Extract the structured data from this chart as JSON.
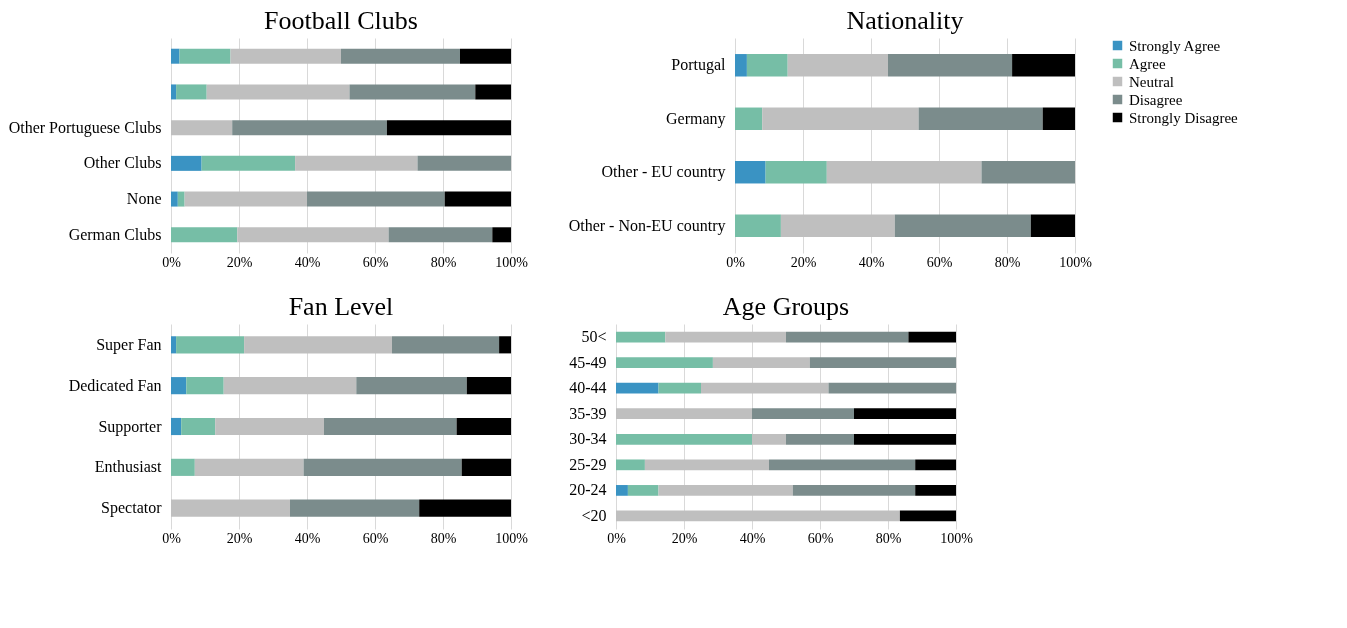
{
  "chart_data": [
    {
      "type": "bar",
      "orientation": "horizontal",
      "stacked": true,
      "title": "Football Clubs",
      "legend": "right",
      "categories": [
        null,
        null,
        "Other Portuguese Clubs",
        "Other Clubs",
        "None",
        "German Clubs"
      ],
      "xlim": [
        0,
        100
      ],
      "xticks": [
        {
          "value": 0,
          "label": "0%"
        },
        {
          "value": 20,
          "label": "20%"
        },
        {
          "value": 40,
          "label": "40%"
        },
        {
          "value": 60,
          "label": "60%"
        },
        {
          "value": 80,
          "label": "80%"
        },
        {
          "value": 100,
          "label": "100%"
        }
      ],
      "grid": "x",
      "series": [
        {
          "name": "Strongly Agree",
          "color": "#3a93c3",
          "values": [
            2.5,
            1.5,
            0,
            9,
            2,
            0
          ]
        },
        {
          "name": "Agree",
          "color": "#76bea6",
          "values": [
            15,
            9,
            0,
            27.5,
            2,
            19.5
          ]
        },
        {
          "name": "Neutral",
          "color": "#bfbfbf",
          "values": [
            32.5,
            42,
            18,
            36,
            36,
            44.5
          ]
        },
        {
          "name": "Disagree",
          "color": "#7b8c8c",
          "values": [
            35,
            37,
            45.5,
            27.5,
            40.5,
            30.5
          ]
        },
        {
          "name": "Strongly Disagree",
          "color": "#000000",
          "values": [
            15,
            10.5,
            36.5,
            0,
            19.5,
            5.5
          ]
        }
      ]
    },
    {
      "type": "bar",
      "orientation": "horizontal",
      "stacked": true,
      "title": "Nationality",
      "legend": "right",
      "categories": [
        "Portugal",
        "Germany",
        "Other - EU country",
        "Other - Non-EU country"
      ],
      "xlim": [
        0,
        100
      ],
      "xticks": [
        {
          "value": 0,
          "label": "0%"
        },
        {
          "value": 20,
          "label": "20%"
        },
        {
          "value": 40,
          "label": "40%"
        },
        {
          "value": 60,
          "label": "60%"
        },
        {
          "value": 80,
          "label": "80%"
        },
        {
          "value": 100,
          "label": "100%"
        }
      ],
      "grid": "x",
      "series": [
        {
          "name": "Strongly Agree",
          "color": "#3a93c3",
          "values": [
            3.5,
            0,
            9,
            0
          ]
        },
        {
          "name": "Agree",
          "color": "#76bea6",
          "values": [
            12,
            8,
            18,
            13.5
          ]
        },
        {
          "name": "Neutral",
          "color": "#bfbfbf",
          "values": [
            29.5,
            46,
            45.5,
            33.5
          ]
        },
        {
          "name": "Disagree",
          "color": "#7b8c8c",
          "values": [
            36.5,
            36.5,
            27.5,
            40
          ]
        },
        {
          "name": "Strongly Disagree",
          "color": "#000000",
          "values": [
            18.5,
            9.5,
            0,
            13
          ]
        }
      ]
    },
    {
      "type": "bar",
      "orientation": "horizontal",
      "stacked": true,
      "title": "Fan Level",
      "legend": "right",
      "categories": [
        "Super Fan",
        "Dedicated Fan",
        "Supporter",
        "Enthusiast",
        "Spectator"
      ],
      "xlim": [
        0,
        100
      ],
      "xticks": [
        {
          "value": 0,
          "label": "0%"
        },
        {
          "value": 20,
          "label": "20%"
        },
        {
          "value": 40,
          "label": "40%"
        },
        {
          "value": 60,
          "label": "60%"
        },
        {
          "value": 80,
          "label": "80%"
        },
        {
          "value": 100,
          "label": "100%"
        }
      ],
      "grid": "x",
      "series": [
        {
          "name": "Strongly Agree",
          "color": "#3a93c3",
          "values": [
            1.5,
            4.5,
            3,
            0,
            0
          ]
        },
        {
          "name": "Agree",
          "color": "#76bea6",
          "values": [
            20,
            11,
            10,
            7,
            0
          ]
        },
        {
          "name": "Neutral",
          "color": "#bfbfbf",
          "values": [
            43.5,
            39,
            32,
            32,
            35
          ]
        },
        {
          "name": "Disagree",
          "color": "#7b8c8c",
          "values": [
            31.5,
            32.5,
            39,
            46.5,
            38
          ]
        },
        {
          "name": "Strongly Disagree",
          "color": "#000000",
          "values": [
            3.5,
            13,
            16,
            14.5,
            27
          ]
        }
      ]
    },
    {
      "type": "bar",
      "orientation": "horizontal",
      "stacked": true,
      "title": "Age Groups",
      "legend": "right",
      "categories": [
        "50<",
        "45-49",
        "40-44",
        "35-39",
        "30-34",
        "25-29",
        "20-24",
        "<20"
      ],
      "xlim": [
        0,
        100
      ],
      "xticks": [
        {
          "value": 0,
          "label": "0%"
        },
        {
          "value": 20,
          "label": "20%"
        },
        {
          "value": 40,
          "label": "40%"
        },
        {
          "value": 60,
          "label": "60%"
        },
        {
          "value": 80,
          "label": "80%"
        },
        {
          "value": 100,
          "label": "100%"
        }
      ],
      "grid": "x",
      "series": [
        {
          "name": "Strongly Agree",
          "color": "#3a93c3",
          "values": [
            0,
            0,
            12.5,
            0,
            0,
            0,
            3.5,
            0
          ]
        },
        {
          "name": "Agree",
          "color": "#76bea6",
          "values": [
            14.5,
            28.5,
            12.5,
            0,
            40,
            8.5,
            9,
            0
          ]
        },
        {
          "name": "Neutral",
          "color": "#bfbfbf",
          "values": [
            35.5,
            28.5,
            37.5,
            40,
            10,
            36.5,
            39.5,
            83.5
          ]
        },
        {
          "name": "Disagree",
          "color": "#7b8c8c",
          "values": [
            36,
            43,
            37.5,
            30,
            20,
            43,
            36,
            0
          ]
        },
        {
          "name": "Strongly Disagree",
          "color": "#000000",
          "values": [
            14,
            0,
            0,
            30,
            30,
            12,
            12,
            16.5
          ]
        }
      ]
    }
  ]
}
